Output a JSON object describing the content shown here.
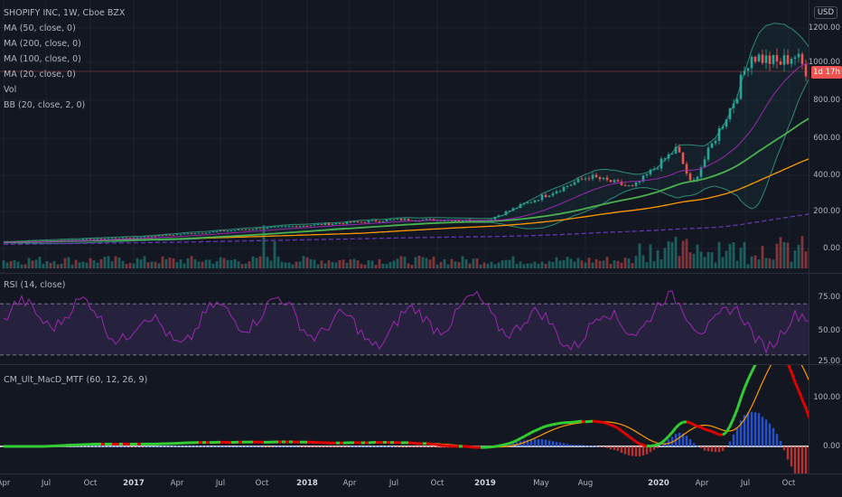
{
  "legend": {
    "title": "SHOPIFY INC, 1W, Cboe BZX",
    "indicators": [
      "MA (50, close, 0)",
      "MA (200, close, 0)",
      "MA (100, close, 0)",
      "MA (20, close, 0)",
      "Vol",
      "BB (20, close, 2, 0)"
    ]
  },
  "currency": "USD",
  "countdown": "1d 17h",
  "price_ticks": [
    "1200.00",
    "1000.00",
    "800.00",
    "600.00",
    "400.00",
    "200.00",
    "0.00"
  ],
  "rsi": {
    "label": "RSI (14, close)",
    "ticks": [
      "75.00",
      "50.00",
      "25.00"
    ]
  },
  "macd": {
    "label": "CM_Ult_MacD_MTF (60, 12, 26, 9)",
    "ticks": [
      "100.00",
      "0.00"
    ]
  },
  "time_labels": [
    {
      "text": "Apr",
      "year": false
    },
    {
      "text": "Jul",
      "year": false
    },
    {
      "text": "Oct",
      "year": false
    },
    {
      "text": "2017",
      "year": true
    },
    {
      "text": "Apr",
      "year": false
    },
    {
      "text": "Jul",
      "year": false
    },
    {
      "text": "Oct",
      "year": false
    },
    {
      "text": "2018",
      "year": true
    },
    {
      "text": "Apr",
      "year": false
    },
    {
      "text": "Jul",
      "year": false
    },
    {
      "text": "Oct",
      "year": false
    },
    {
      "text": "2019",
      "year": true
    },
    {
      "text": "May",
      "year": false
    },
    {
      "text": "Aug",
      "year": false
    },
    {
      "text": "2020",
      "year": true
    },
    {
      "text": "Apr",
      "year": false
    },
    {
      "text": "Jul",
      "year": false
    },
    {
      "text": "Oct",
      "year": false
    }
  ],
  "colors": {
    "background": "#131722",
    "up": "#26a69a",
    "down": "#ef5350",
    "ma50": "#4caf50",
    "ma200": "#673ab7",
    "ma100": "#ff9800",
    "ma20": "#9c27b0",
    "bb": "#2e8b75",
    "rsi": "#9c27b0",
    "macd_up": "#32cd32",
    "macd_down": "#e00000"
  },
  "chart_data": {
    "type": "candlestick",
    "symbol": "SHOPIFY INC",
    "interval": "1W",
    "exchange": "Cboe BZX",
    "price_range": [
      -50,
      1250
    ],
    "key_points": [
      {
        "date": "2016-04",
        "price": 28
      },
      {
        "date": "2017-01",
        "price": 55
      },
      {
        "date": "2017-10",
        "price": 105
      },
      {
        "date": "2018-07",
        "price": 150
      },
      {
        "date": "2019-01",
        "price": 145
      },
      {
        "date": "2019-08",
        "price": 380
      },
      {
        "date": "2019-11",
        "price": 320
      },
      {
        "date": "2020-02",
        "price": 530
      },
      {
        "date": "2020-03",
        "price": 330
      },
      {
        "date": "2020-06",
        "price": 800
      },
      {
        "date": "2020-07",
        "price": 1030
      },
      {
        "date": "2020-09",
        "price": 980
      },
      {
        "date": "2020-10",
        "price": 1030
      },
      {
        "date": "2020-11",
        "price": 930
      }
    ],
    "rsi_range": [
      25,
      75
    ],
    "macd_range": [
      -20,
      120
    ]
  }
}
